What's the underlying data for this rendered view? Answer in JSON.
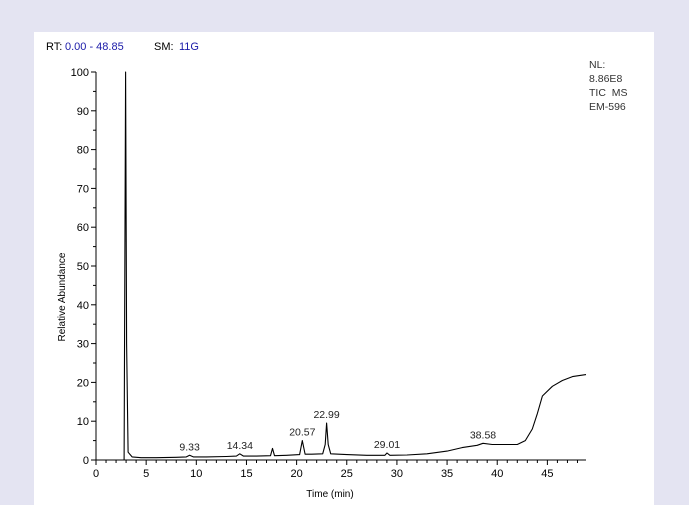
{
  "header": {
    "rt_label": "RT:",
    "rt_range": "0.00 - 48.85",
    "sm_label": "SM:",
    "sm_value": "11G"
  },
  "info": {
    "nl_label": "NL:",
    "nl_value": "8.86E8",
    "trace": "TIC  MS",
    "sample": "EM-596"
  },
  "chart_data": {
    "type": "line",
    "xlabel": "Time (min)",
    "ylabel": "Relative Abundance",
    "xlim": [
      0,
      48.85
    ],
    "ylim": [
      0,
      100
    ],
    "x_ticks": [
      0,
      5,
      10,
      15,
      20,
      25,
      30,
      35,
      40,
      45
    ],
    "y_ticks": [
      0,
      10,
      20,
      30,
      40,
      50,
      60,
      70,
      80,
      90,
      100
    ],
    "grid": false,
    "color": "#000000",
    "series": [
      {
        "x": [
          0,
          2.8,
          2.95,
          3.05,
          3.2,
          3.6,
          4.5,
          6,
          8,
          9.0,
          9.33,
          9.7,
          11,
          13,
          14.0,
          14.34,
          14.7,
          16,
          17.4,
          17.6,
          17.8,
          19,
          20.3,
          20.57,
          20.85,
          21.5,
          22.6,
          22.85,
          22.99,
          23.15,
          23.4,
          25,
          27,
          28.8,
          29.01,
          29.3,
          31,
          33,
          35,
          36.5,
          38.0,
          38.58,
          39.5,
          41,
          42.0,
          42.8,
          43.5,
          44.0,
          44.5,
          45.5,
          46.5,
          47.5,
          48.85
        ],
        "y": [
          0,
          0,
          100,
          30,
          2,
          0.8,
          0.6,
          0.6,
          0.7,
          0.8,
          1.2,
          0.8,
          0.8,
          0.9,
          1.0,
          1.6,
          1.0,
          1.0,
          1.1,
          3.0,
          1.1,
          1.2,
          1.4,
          5.0,
          1.5,
          1.5,
          1.6,
          4.0,
          9.5,
          4.0,
          1.6,
          1.4,
          1.2,
          1.2,
          1.8,
          1.2,
          1.3,
          1.6,
          2.3,
          3.2,
          3.8,
          4.3,
          4.0,
          4.0,
          4.0,
          5.0,
          8.0,
          12.0,
          16.5,
          19.0,
          20.5,
          21.5,
          22.0
        ]
      }
    ],
    "peak_labels": [
      {
        "x": 9.33,
        "y": 1.2,
        "label": "9.33"
      },
      {
        "x": 14.34,
        "y": 1.6,
        "label": "14.34"
      },
      {
        "x": 20.57,
        "y": 5.0,
        "label": "20.57"
      },
      {
        "x": 22.99,
        "y": 9.5,
        "label": "22.99"
      },
      {
        "x": 29.01,
        "y": 1.8,
        "label": "29.01"
      },
      {
        "x": 38.58,
        "y": 4.3,
        "label": "38.58"
      }
    ]
  }
}
